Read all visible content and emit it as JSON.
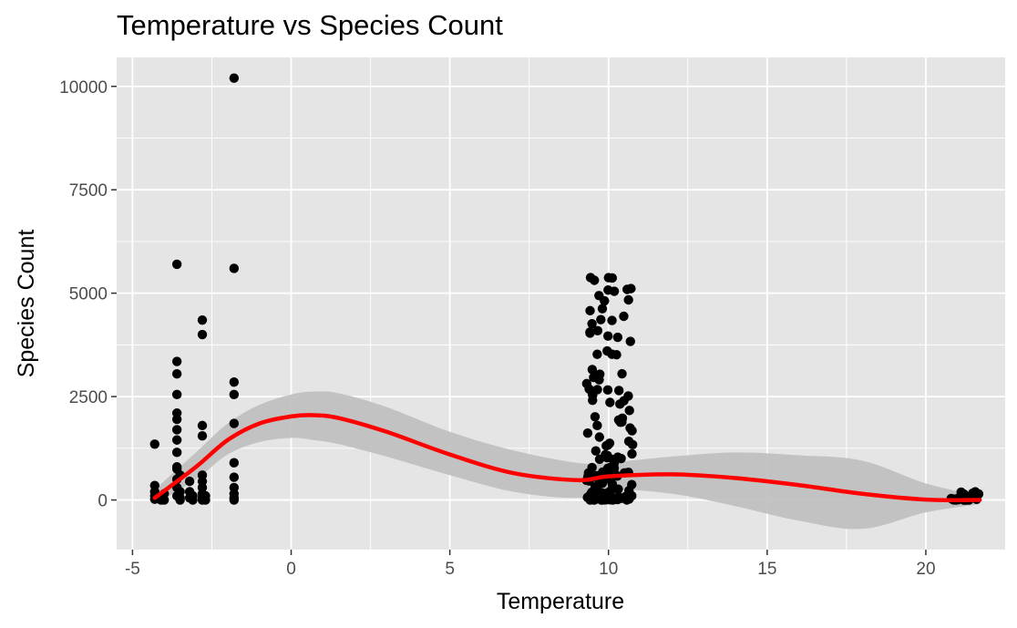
{
  "chart_data": {
    "type": "scatter",
    "title": "Temperature vs Species Count",
    "xlabel": "Temperature",
    "ylabel": "Species Count",
    "xlim": [
      -5.5,
      22.5
    ],
    "ylim": [
      -1200,
      10700
    ],
    "xticks": [
      -5,
      0,
      5,
      10,
      15,
      20
    ],
    "xtick_labels": [
      "-5",
      "0",
      "5",
      "10",
      "15",
      "20"
    ],
    "yticks": [
      0,
      2500,
      5000,
      7500,
      10000
    ],
    "ytick_labels": [
      "0",
      "2500",
      "5000",
      "7500",
      "10000"
    ],
    "grid": true,
    "legend": "none",
    "colors": {
      "panel": "#e5e5e5",
      "grid": "#ffffff",
      "points": "#000000",
      "smooth_line": "#ff0000",
      "confidence_band": "#bebebe"
    },
    "series": [
      {
        "kind": "points",
        "x": [
          -4.3,
          -4.3,
          -4.3,
          -4.3,
          -4.3,
          -4.2,
          -4.1,
          -4.0,
          -4.0,
          -3.6,
          -3.6,
          -3.6,
          -3.6,
          -3.6,
          -3.6,
          -3.6,
          -3.6,
          -3.6,
          -3.6,
          -3.6,
          -3.6,
          -3.6,
          -3.6,
          -3.5,
          -3.5,
          -3.5,
          -3.5,
          -3.2,
          -3.2,
          -3.2,
          -3.1,
          -3.1,
          -2.8,
          -2.8,
          -2.8,
          -2.8,
          -2.8,
          -2.8,
          -2.8,
          -2.8,
          -2.8,
          -2.8,
          -2.7,
          -2.7,
          -1.8,
          -1.8,
          -1.8,
          -1.8,
          -1.8,
          -1.8,
          -1.8,
          -1.8,
          -1.8,
          -1.8,
          -1.8
        ],
        "y": [
          1350,
          350,
          200,
          100,
          20,
          50,
          0,
          150,
          0,
          5700,
          3350,
          3050,
          2550,
          2100,
          1950,
          1700,
          1450,
          1150,
          800,
          750,
          500,
          300,
          100,
          600,
          200,
          50,
          0,
          450,
          200,
          50,
          0,
          100,
          4350,
          4000,
          1800,
          1550,
          600,
          450,
          300,
          150,
          50,
          0,
          100,
          0,
          10200,
          5600,
          2850,
          2550,
          1850,
          900,
          550,
          300,
          150,
          50,
          0
        ],
        "clusters": [
          {
            "x_range": [
              9.3,
              10.8
            ],
            "y_range": [
              0,
              5500
            ],
            "approx_points": 140
          },
          {
            "x_range": [
              20.8,
              21.7
            ],
            "y_range": [
              0,
              200
            ],
            "approx_points": 30
          }
        ]
      },
      {
        "kind": "smooth",
        "x": [
          -4.3,
          -3,
          -2,
          -1,
          0,
          0.7,
          1.5,
          3,
          5,
          7,
          9,
          10,
          12,
          14,
          16,
          18,
          20,
          21.7
        ],
        "y": [
          50,
          800,
          1450,
          1850,
          2020,
          2050,
          1980,
          1650,
          1100,
          650,
          480,
          570,
          620,
          530,
          360,
          150,
          10,
          0
        ],
        "band_lower": [
          -100,
          500,
          1100,
          1400,
          1500,
          1450,
          1350,
          1050,
          600,
          200,
          50,
          250,
          150,
          -150,
          -500,
          -700,
          -300,
          -100
        ],
        "band_upper": [
          250,
          1150,
          1850,
          2300,
          2550,
          2620,
          2580,
          2250,
          1650,
          1200,
          900,
          900,
          1050,
          1150,
          1080,
          950,
          400,
          100
        ]
      }
    ]
  }
}
